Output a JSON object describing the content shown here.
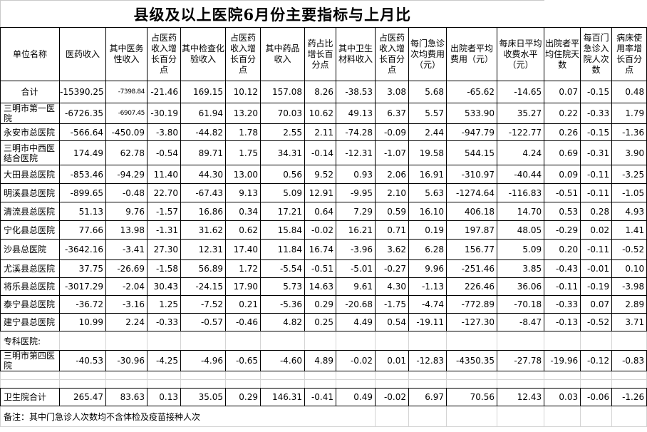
{
  "title": "县级及以上医院6月份主要指标与上月比",
  "table": {
    "columns": [
      "单位名称",
      "医药收入",
      "其中医务性收入",
      "占医药收入增长百分点",
      "其中检查化验收入",
      "占医药收入增长百分点",
      "其中药品收入",
      "药占比增长百分点",
      "其中卫生材料收入",
      "占医药收入增长百分点",
      "每门急诊次均费用（元）",
      "出院者平均费用（元）",
      "每床日平均收费水平（元）",
      "出院者平均住院天数",
      "每百门急诊入院人次数",
      "病床使用率增长百分点"
    ],
    "rows": [
      {
        "type": "total",
        "name": "合计",
        "values": [
          "-15390.25",
          "-7398.84",
          "-21.46",
          "169.15",
          "10.12",
          "157.08",
          "8.26",
          "-38.53",
          "3.08",
          "5.68",
          "-65.62",
          "-14.65",
          "0.07",
          "-0.15",
          "0.48"
        ]
      },
      {
        "type": "hospital",
        "name": "三明市第一医院",
        "values": [
          "-6726.35",
          "-6907.45",
          "-30.19",
          "61.94",
          "13.20",
          "70.03",
          "10.62",
          "49.13",
          "6.37",
          "5.57",
          "533.90",
          "35.27",
          "0.22",
          "-0.33",
          "1.79"
        ]
      },
      {
        "type": "hospital",
        "name": "永安市总医院",
        "values": [
          "-566.64",
          "-450.09",
          "-3.80",
          "-44.82",
          "1.78",
          "2.55",
          "2.11",
          "-74.28",
          "-0.09",
          "2.44",
          "-947.79",
          "-122.77",
          "0.26",
          "-0.15",
          "-1.36"
        ]
      },
      {
        "type": "hospital",
        "name": "三明市中西医结合医院",
        "values": [
          "174.49",
          "62.78",
          "-0.54",
          "89.71",
          "1.75",
          "34.31",
          "-0.14",
          "-12.31",
          "-1.07",
          "19.58",
          "544.15",
          "4.24",
          "0.69",
          "-0.31",
          "3.90"
        ]
      },
      {
        "type": "hospital",
        "name": "大田县总医院",
        "values": [
          "-853.46",
          "-94.29",
          "11.40",
          "44.30",
          "13.00",
          "0.56",
          "9.52",
          "0.93",
          "2.06",
          "16.91",
          "-310.97",
          "-40.44",
          "0.09",
          "-0.11",
          "-3.25"
        ]
      },
      {
        "type": "hospital",
        "name": "明溪县总医院",
        "values": [
          "-899.65",
          "-0.48",
          "22.70",
          "-67.43",
          "9.13",
          "5.09",
          "12.91",
          "-9.95",
          "2.10",
          "5.63",
          "-1274.64",
          "-116.83",
          "-0.51",
          "-0.11",
          "-1.05"
        ]
      },
      {
        "type": "hospital",
        "name": "清流县总医院",
        "values": [
          "51.13",
          "9.76",
          "-1.57",
          "16.86",
          "0.34",
          "17.21",
          "0.64",
          "7.29",
          "0.59",
          "16.10",
          "406.18",
          "14.70",
          "0.53",
          "0.28",
          "4.93"
        ]
      },
      {
        "type": "hospital",
        "name": "宁化县总医院",
        "values": [
          "77.66",
          "13.98",
          "-1.31",
          "31.62",
          "0.62",
          "15.84",
          "-0.02",
          "16.21",
          "0.71",
          "0.19",
          "197.87",
          "48.05",
          "-0.29",
          "0.02",
          "1.41"
        ]
      },
      {
        "type": "hospital",
        "name": "沙县总医院",
        "values": [
          "-3642.16",
          "-3.41",
          "27.30",
          "12.31",
          "17.40",
          "11.84",
          "16.74",
          "-3.96",
          "3.62",
          "6.28",
          "156.77",
          "5.09",
          "0.20",
          "-0.11",
          "-0.52"
        ]
      },
      {
        "type": "hospital",
        "name": "尤溪县总医院",
        "values": [
          "37.75",
          "-26.69",
          "-1.58",
          "56.89",
          "1.72",
          "-5.54",
          "-0.51",
          "-5.01",
          "-0.27",
          "9.96",
          "-251.46",
          "3.85",
          "-0.43",
          "-0.01",
          "0.10"
        ]
      },
      {
        "type": "hospital",
        "name": "将乐县总医院",
        "values": [
          "-3017.29",
          "-2.04",
          "30.43",
          "-24.15",
          "17.90",
          "5.73",
          "14.63",
          "9.61",
          "4.30",
          "-1.13",
          "226.46",
          "36.06",
          "-0.11",
          "-0.19",
          "-3.98"
        ]
      },
      {
        "type": "hospital",
        "name": "泰宁县总医院",
        "values": [
          "-36.72",
          "-3.16",
          "1.25",
          "-7.52",
          "0.21",
          "-5.36",
          "0.29",
          "-20.68",
          "-1.75",
          "-4.74",
          "-772.89",
          "-70.18",
          "-0.33",
          "0.07",
          "2.89"
        ]
      },
      {
        "type": "hospital",
        "name": "建宁县总医院",
        "values": [
          "10.99",
          "2.24",
          "-0.33",
          "-0.57",
          "-0.46",
          "4.82",
          "0.25",
          "4.49",
          "0.54",
          "-19.11",
          "-127.30",
          "-8.47",
          "-0.13",
          "-0.52",
          "3.71"
        ]
      },
      {
        "type": "section",
        "name": "专科医院:",
        "values": [
          "",
          "",
          "",
          "",
          "",
          "",
          "",
          "",
          "",
          "",
          "",
          "",
          "",
          "",
          ""
        ]
      },
      {
        "type": "hospital",
        "name": "三明市第四医院",
        "values": [
          "-40.53",
          "-30.96",
          "-4.25",
          "-4.96",
          "-0.65",
          "-4.60",
          "4.89",
          "-0.02",
          "0.01",
          "-12.83",
          "-4350.35",
          "-27.78",
          "-19.96",
          "-0.12",
          "-0.83"
        ]
      },
      {
        "type": "spacer",
        "name": "",
        "values": [
          "",
          "",
          "",
          "",
          "",
          "",
          "",
          "",
          "",
          "",
          "",
          "",
          "",
          "",
          ""
        ]
      },
      {
        "type": "subtotal",
        "name": "卫生院合计",
        "values": [
          "265.47",
          "83.63",
          "0.13",
          "35.05",
          "0.29",
          "146.31",
          "-0.41",
          "0.49",
          "-0.02",
          "6.97",
          "70.56",
          "12.43",
          "0.03",
          "-0.06",
          "-1.26"
        ]
      }
    ],
    "footnote": "备注：其中门急诊人次数均不含体检及疫苗接种人次"
  }
}
